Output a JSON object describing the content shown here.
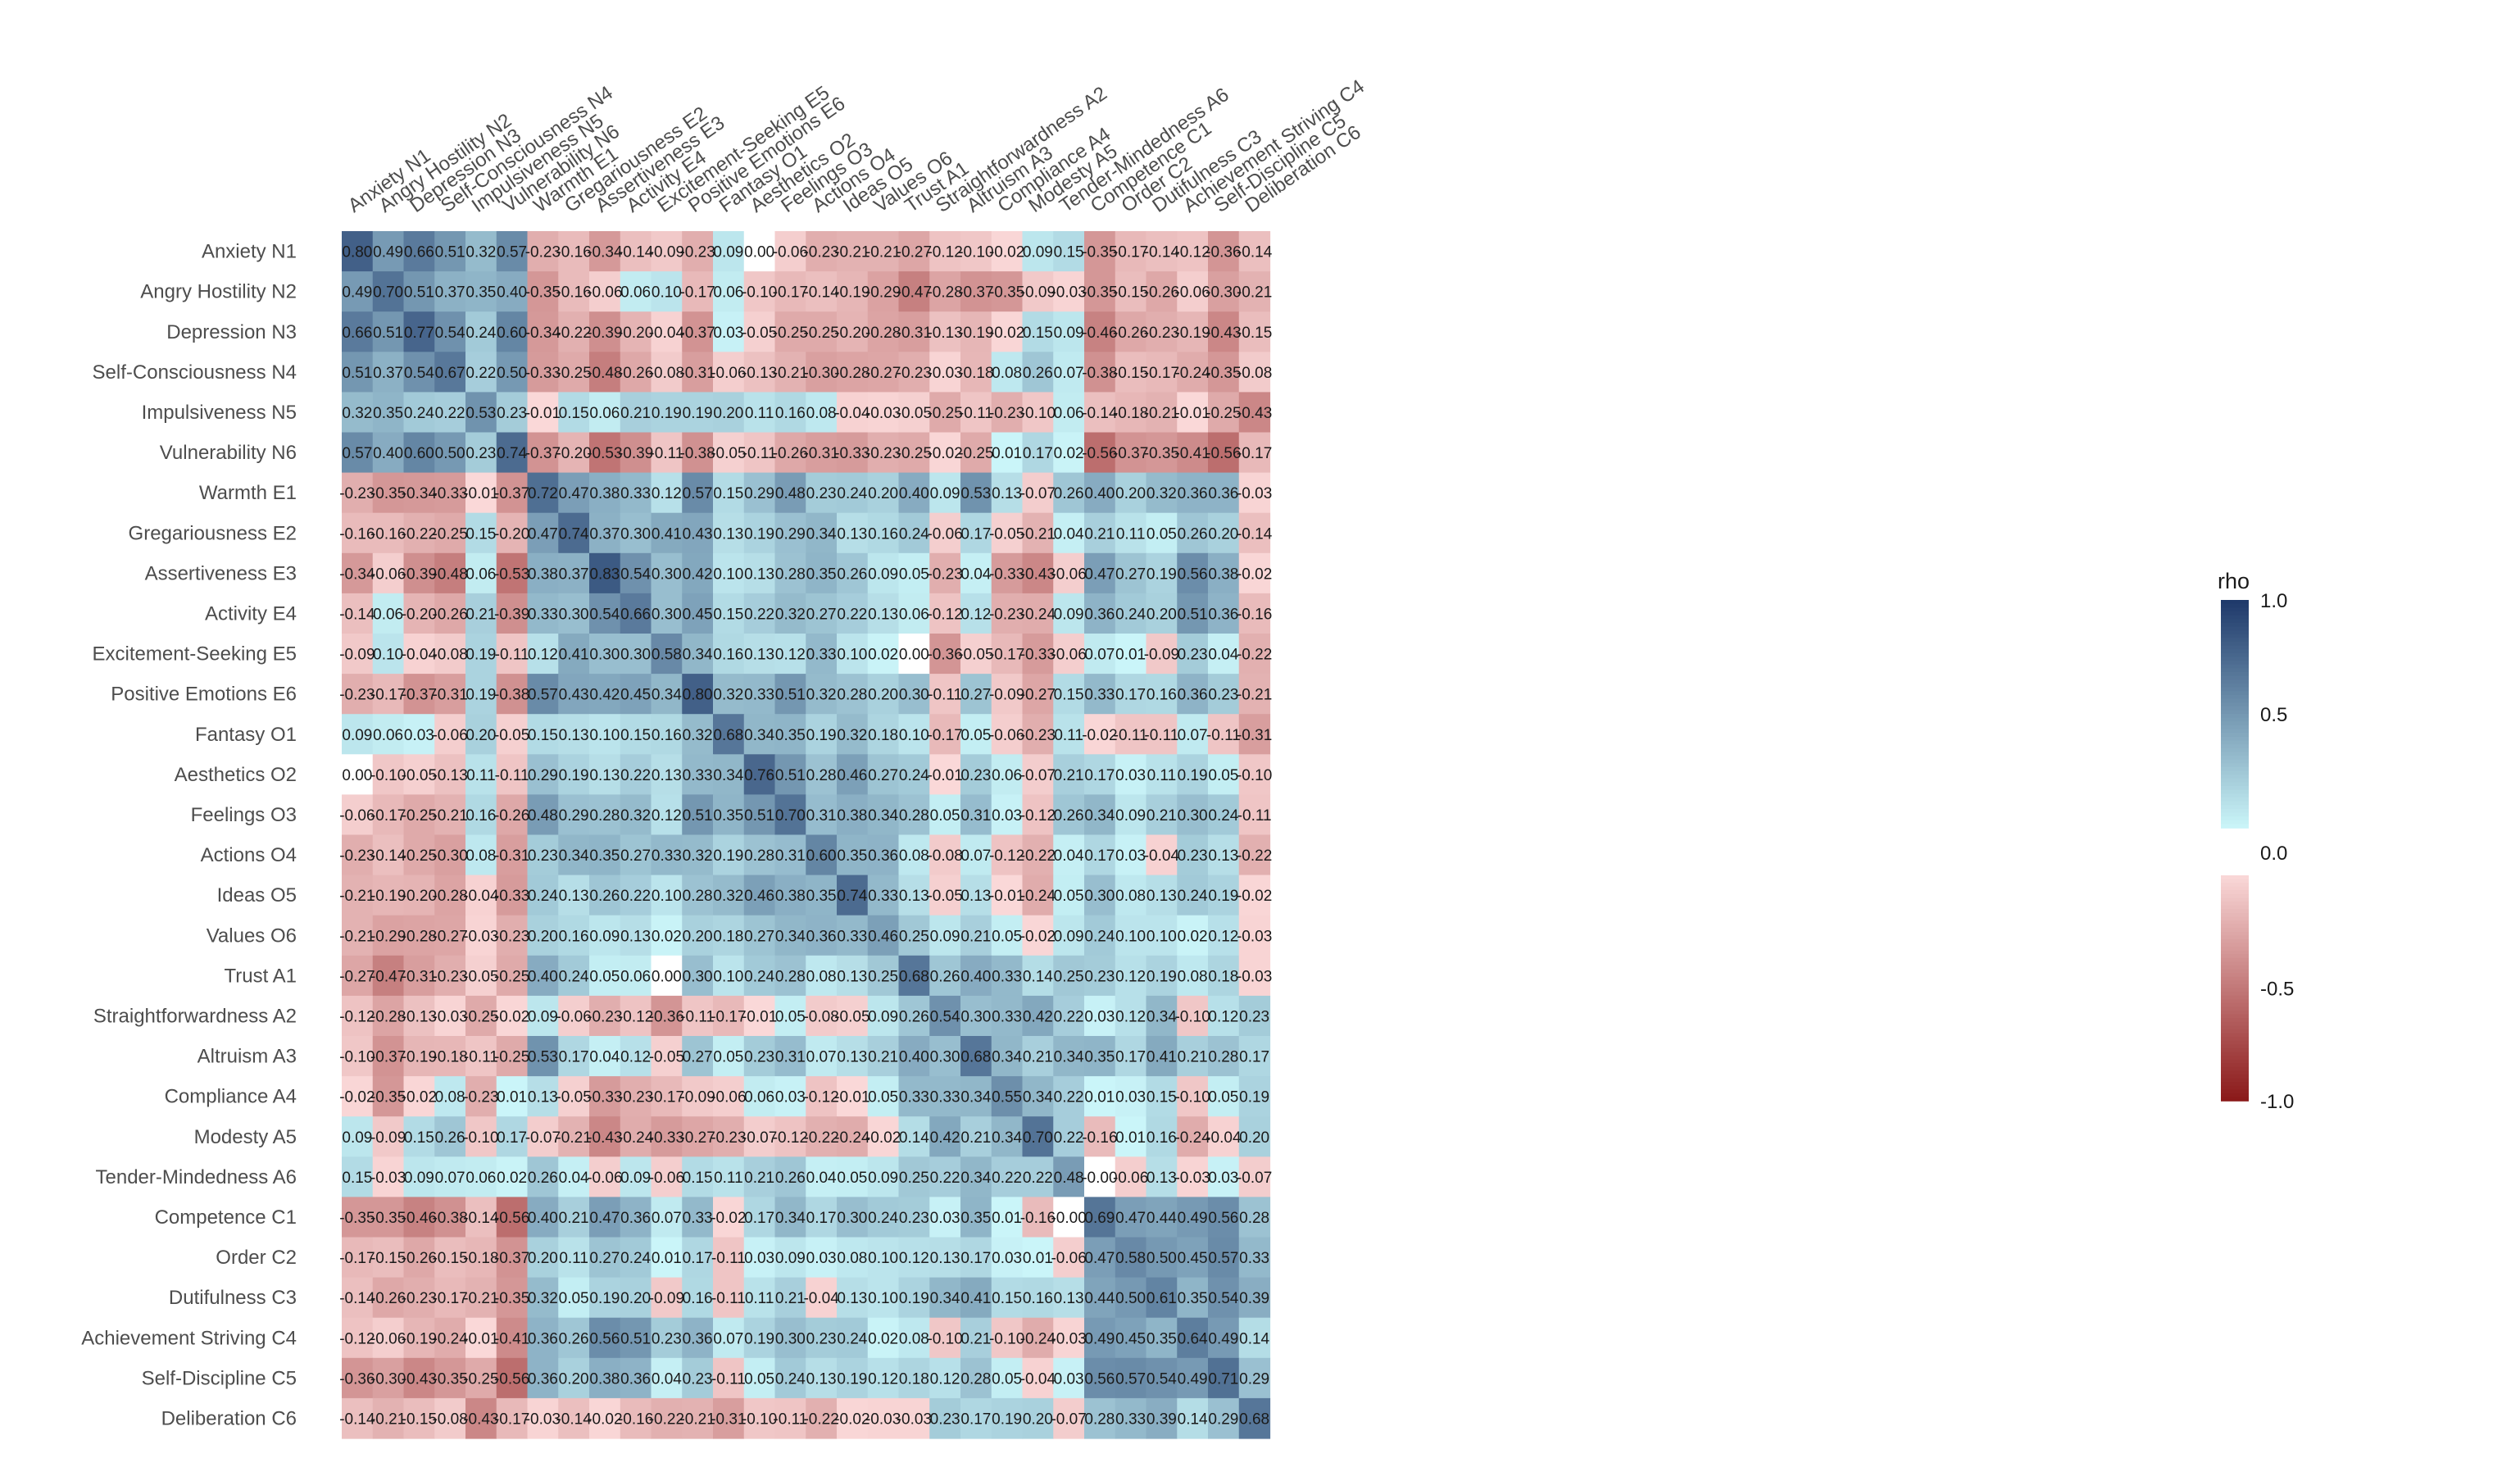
{
  "chart_data": {
    "type": "heatmap",
    "title": "",
    "xlabel": "",
    "ylabel": "",
    "rows": [
      "Anxiety N1",
      "Angry Hostility N2",
      "Depression N3",
      "Self-Consciousness N4",
      "Impulsiveness N5",
      "Vulnerability N6",
      "Warmth E1",
      "Gregariousness E2",
      "Assertiveness E3",
      "Activity E4",
      "Excitement-Seeking E5",
      "Positive Emotions E6",
      "Fantasy O1",
      "Aesthetics O2",
      "Feelings O3",
      "Actions O4",
      "Ideas O5",
      "Values O6",
      "Trust A1",
      "Straightforwardness A2",
      "Altruism A3",
      "Compliance A4",
      "Modesty A5",
      "Tender-Mindedness A6",
      "Competence C1",
      "Order C2",
      "Dutifulness C3",
      "Achievement Striving C4",
      "Self-Discipline C5",
      "Deliberation C6"
    ],
    "columns": [
      "Anxiety N1",
      "Angry Hostility N2",
      "Depression N3",
      "Self-Consciousness N4",
      "Impulsiveness N5",
      "Vulnerability N6",
      "Warmth E1",
      "Gregariousness E2",
      "Assertiveness E3",
      "Activity E4",
      "Excitement-Seeking E5",
      "Positive Emotions E6",
      "Fantasy O1",
      "Aesthetics O2",
      "Feelings O3",
      "Actions O4",
      "Ideas O5",
      "Values O6",
      "Trust A1",
      "Straightforwardness A2",
      "Altruism A3",
      "Compliance A4",
      "Modesty A5",
      "Tender-Mindedness A6",
      "Competence C1",
      "Order C2",
      "Dutifulness C3",
      "Achievement Striving C4",
      "Self-Discipline C5",
      "Deliberation C6"
    ],
    "values": [
      [
        "0.80",
        "0.49",
        "0.66",
        "0.51",
        "0.32",
        "0.57",
        "-0.23",
        "-0.16",
        "-0.34",
        "-0.14",
        "-0.09",
        "-0.23",
        "0.09",
        "0.00",
        "-0.06",
        "-0.23",
        "-0.21",
        "-0.21",
        "-0.27",
        "-0.12",
        "-0.10",
        "-0.02",
        "0.09",
        "0.15",
        "-0.35",
        "-0.17",
        "-0.14",
        "-0.12",
        "-0.36",
        "-0.14"
      ],
      [
        "0.49",
        "0.70",
        "0.51",
        "0.37",
        "0.35",
        "0.40",
        "-0.35",
        "-0.16",
        "-0.06",
        "0.06",
        "0.10",
        "-0.17",
        "0.06",
        "-0.10",
        "-0.17",
        "-0.14",
        "-0.19",
        "-0.29",
        "-0.47",
        "-0.28",
        "-0.37",
        "-0.35",
        "-0.09",
        "-0.03",
        "-0.35",
        "-0.15",
        "-0.26",
        "-0.06",
        "-0.30",
        "-0.21"
      ],
      [
        "0.66",
        "0.51",
        "0.77",
        "0.54",
        "0.24",
        "0.60",
        "-0.34",
        "-0.22",
        "-0.39",
        "-0.20",
        "-0.04",
        "-0.37",
        "0.03",
        "-0.05",
        "-0.25",
        "-0.25",
        "-0.20",
        "-0.28",
        "-0.31",
        "-0.13",
        "-0.19",
        "-0.02",
        "0.15",
        "0.09",
        "-0.46",
        "-0.26",
        "-0.23",
        "-0.19",
        "-0.43",
        "-0.15"
      ],
      [
        "0.51",
        "0.37",
        "0.54",
        "0.67",
        "0.22",
        "0.50",
        "-0.33",
        "-0.25",
        "-0.48",
        "-0.26",
        "-0.08",
        "-0.31",
        "-0.06",
        "-0.13",
        "-0.21",
        "-0.30",
        "-0.28",
        "-0.27",
        "-0.23",
        "-0.03",
        "-0.18",
        "0.08",
        "0.26",
        "0.07",
        "-0.38",
        "-0.15",
        "-0.17",
        "-0.24",
        "-0.35",
        "-0.08"
      ],
      [
        "0.32",
        "0.35",
        "0.24",
        "0.22",
        "0.53",
        "0.23",
        "-0.01",
        "0.15",
        "0.06",
        "0.21",
        "0.19",
        "0.19",
        "0.20",
        "0.11",
        "0.16",
        "0.08",
        "-0.04",
        "-0.03",
        "-0.05",
        "-0.25",
        "-0.11",
        "-0.23",
        "-0.10",
        "0.06",
        "-0.14",
        "-0.18",
        "-0.21",
        "-0.01",
        "-0.25",
        "-0.43"
      ],
      [
        "0.57",
        "0.40",
        "0.60",
        "0.50",
        "0.23",
        "0.74",
        "-0.37",
        "-0.20",
        "-0.53",
        "-0.39",
        "-0.11",
        "-0.38",
        "-0.05",
        "-0.11",
        "-0.26",
        "-0.31",
        "-0.33",
        "-0.23",
        "-0.25",
        "-0.02",
        "-0.25",
        "0.01",
        "0.17",
        "0.02",
        "-0.56",
        "-0.37",
        "-0.35",
        "-0.41",
        "-0.56",
        "-0.17"
      ],
      [
        "-0.23",
        "-0.35",
        "-0.34",
        "-0.33",
        "-0.01",
        "-0.37",
        "0.72",
        "0.47",
        "0.38",
        "0.33",
        "0.12",
        "0.57",
        "0.15",
        "0.29",
        "0.48",
        "0.23",
        "0.24",
        "0.20",
        "0.40",
        "0.09",
        "0.53",
        "0.13",
        "-0.07",
        "0.26",
        "0.40",
        "0.20",
        "0.32",
        "0.36",
        "0.36",
        "-0.03"
      ],
      [
        "-0.16",
        "-0.16",
        "-0.22",
        "-0.25",
        "0.15",
        "-0.20",
        "0.47",
        "0.74",
        "0.37",
        "0.30",
        "0.41",
        "0.43",
        "0.13",
        "0.19",
        "0.29",
        "0.34",
        "0.13",
        "0.16",
        "0.24",
        "-0.06",
        "0.17",
        "-0.05",
        "-0.21",
        "0.04",
        "0.21",
        "0.11",
        "0.05",
        "0.26",
        "0.20",
        "-0.14"
      ],
      [
        "-0.34",
        "-0.06",
        "-0.39",
        "-0.48",
        "0.06",
        "-0.53",
        "0.38",
        "0.37",
        "0.83",
        "0.54",
        "0.30",
        "0.42",
        "0.10",
        "0.13",
        "0.28",
        "0.35",
        "0.26",
        "0.09",
        "0.05",
        "-0.23",
        "0.04",
        "-0.33",
        "-0.43",
        "-0.06",
        "0.47",
        "0.27",
        "0.19",
        "0.56",
        "0.38",
        "-0.02"
      ],
      [
        "-0.14",
        "0.06",
        "-0.20",
        "-0.26",
        "0.21",
        "-0.39",
        "0.33",
        "0.30",
        "0.54",
        "0.66",
        "0.30",
        "0.45",
        "0.15",
        "0.22",
        "0.32",
        "0.27",
        "0.22",
        "0.13",
        "0.06",
        "-0.12",
        "0.12",
        "-0.23",
        "-0.24",
        "0.09",
        "0.36",
        "0.24",
        "0.20",
        "0.51",
        "0.36",
        "-0.16"
      ],
      [
        "-0.09",
        "0.10",
        "-0.04",
        "-0.08",
        "0.19",
        "-0.11",
        "0.12",
        "0.41",
        "0.30",
        "0.30",
        "0.58",
        "0.34",
        "0.16",
        "0.13",
        "0.12",
        "0.33",
        "0.10",
        "0.02",
        "0.00",
        "-0.36",
        "-0.05",
        "-0.17",
        "-0.33",
        "-0.06",
        "0.07",
        "0.01",
        "-0.09",
        "0.23",
        "0.04",
        "-0.22"
      ],
      [
        "-0.23",
        "-0.17",
        "-0.37",
        "-0.31",
        "0.19",
        "-0.38",
        "0.57",
        "0.43",
        "0.42",
        "0.45",
        "0.34",
        "0.80",
        "0.32",
        "0.33",
        "0.51",
        "0.32",
        "0.28",
        "0.20",
        "0.30",
        "-0.11",
        "0.27",
        "-0.09",
        "-0.27",
        "0.15",
        "0.33",
        "0.17",
        "0.16",
        "0.36",
        "0.23",
        "-0.21"
      ],
      [
        "0.09",
        "0.06",
        "0.03",
        "-0.06",
        "0.20",
        "-0.05",
        "0.15",
        "0.13",
        "0.10",
        "0.15",
        "0.16",
        "0.32",
        "0.68",
        "0.34",
        "0.35",
        "0.19",
        "0.32",
        "0.18",
        "0.10",
        "-0.17",
        "0.05",
        "-0.06",
        "-0.23",
        "0.11",
        "-0.02",
        "-0.11",
        "-0.11",
        "0.07",
        "-0.11",
        "-0.31"
      ],
      [
        "0.00",
        "-0.10",
        "-0.05",
        "-0.13",
        "0.11",
        "-0.11",
        "0.29",
        "0.19",
        "0.13",
        "0.22",
        "0.13",
        "0.33",
        "0.34",
        "0.76",
        "0.51",
        "0.28",
        "0.46",
        "0.27",
        "0.24",
        "-0.01",
        "0.23",
        "0.06",
        "-0.07",
        "0.21",
        "0.17",
        "0.03",
        "0.11",
        "0.19",
        "0.05",
        "-0.10"
      ],
      [
        "-0.06",
        "-0.17",
        "-0.25",
        "-0.21",
        "0.16",
        "-0.26",
        "0.48",
        "0.29",
        "0.28",
        "0.32",
        "0.12",
        "0.51",
        "0.35",
        "0.51",
        "0.70",
        "0.31",
        "0.38",
        "0.34",
        "0.28",
        "0.05",
        "0.31",
        "0.03",
        "-0.12",
        "0.26",
        "0.34",
        "0.09",
        "0.21",
        "0.30",
        "0.24",
        "-0.11"
      ],
      [
        "-0.23",
        "-0.14",
        "-0.25",
        "-0.30",
        "0.08",
        "-0.31",
        "0.23",
        "0.34",
        "0.35",
        "0.27",
        "0.33",
        "0.32",
        "0.19",
        "0.28",
        "0.31",
        "0.60",
        "0.35",
        "0.36",
        "0.08",
        "-0.08",
        "0.07",
        "-0.12",
        "-0.22",
        "0.04",
        "0.17",
        "0.03",
        "-0.04",
        "0.23",
        "0.13",
        "-0.22"
      ],
      [
        "-0.21",
        "-0.19",
        "-0.20",
        "-0.28",
        "-0.04",
        "-0.33",
        "0.24",
        "0.13",
        "0.26",
        "0.22",
        "0.10",
        "0.28",
        "0.32",
        "0.46",
        "0.38",
        "0.35",
        "0.74",
        "0.33",
        "0.13",
        "-0.05",
        "0.13",
        "-0.01",
        "-0.24",
        "0.05",
        "0.30",
        "0.08",
        "0.13",
        "0.24",
        "0.19",
        "-0.02"
      ],
      [
        "-0.21",
        "-0.29",
        "-0.28",
        "-0.27",
        "-0.03",
        "-0.23",
        "0.20",
        "0.16",
        "0.09",
        "0.13",
        "0.02",
        "0.20",
        "0.18",
        "0.27",
        "0.34",
        "0.36",
        "0.33",
        "0.46",
        "0.25",
        "0.09",
        "0.21",
        "0.05",
        "-0.02",
        "0.09",
        "0.24",
        "0.10",
        "0.10",
        "0.02",
        "0.12",
        "-0.03"
      ],
      [
        "-0.27",
        "-0.47",
        "-0.31",
        "-0.23",
        "-0.05",
        "-0.25",
        "0.40",
        "0.24",
        "0.05",
        "0.06",
        "0.00",
        "0.30",
        "0.10",
        "0.24",
        "0.28",
        "0.08",
        "0.13",
        "0.25",
        "0.68",
        "0.26",
        "0.40",
        "0.33",
        "0.14",
        "0.25",
        "0.23",
        "0.12",
        "0.19",
        "0.08",
        "0.18",
        "-0.03"
      ],
      [
        "-0.12",
        "-0.28",
        "-0.13",
        "-0.03",
        "-0.25",
        "-0.02",
        "0.09",
        "-0.06",
        "-0.23",
        "-0.12",
        "-0.36",
        "-0.11",
        "-0.17",
        "-0.01",
        "0.05",
        "-0.08",
        "-0.05",
        "0.09",
        "0.26",
        "0.54",
        "0.30",
        "0.33",
        "0.42",
        "0.22",
        "0.03",
        "0.12",
        "0.34",
        "-0.10",
        "0.12",
        "0.23"
      ],
      [
        "-0.10",
        "-0.37",
        "-0.19",
        "-0.18",
        "-0.11",
        "-0.25",
        "0.53",
        "0.17",
        "0.04",
        "0.12",
        "-0.05",
        "0.27",
        "0.05",
        "0.23",
        "0.31",
        "0.07",
        "0.13",
        "0.21",
        "0.40",
        "0.30",
        "0.68",
        "0.34",
        "0.21",
        "0.34",
        "0.35",
        "0.17",
        "0.41",
        "0.21",
        "0.28",
        "0.17"
      ],
      [
        "-0.02",
        "-0.35",
        "-0.02",
        "0.08",
        "-0.23",
        "0.01",
        "0.13",
        "-0.05",
        "-0.33",
        "-0.23",
        "-0.17",
        "-0.09",
        "-0.06",
        "0.06",
        "0.03",
        "-0.12",
        "-0.01",
        "0.05",
        "0.33",
        "0.33",
        "0.34",
        "0.55",
        "0.34",
        "0.22",
        "0.01",
        "0.03",
        "0.15",
        "-0.10",
        "0.05",
        "0.19"
      ],
      [
        "0.09",
        "-0.09",
        "0.15",
        "0.26",
        "-0.10",
        "0.17",
        "-0.07",
        "-0.21",
        "-0.43",
        "-0.24",
        "-0.33",
        "-0.27",
        "-0.23",
        "-0.07",
        "-0.12",
        "-0.22",
        "-0.24",
        "-0.02",
        "0.14",
        "0.42",
        "0.21",
        "0.34",
        "0.70",
        "0.22",
        "-0.16",
        "0.01",
        "0.16",
        "-0.24",
        "-0.04",
        "0.20"
      ],
      [
        "0.15",
        "-0.03",
        "0.09",
        "0.07",
        "0.06",
        "0.02",
        "0.26",
        "0.04",
        "-0.06",
        "0.09",
        "-0.06",
        "0.15",
        "0.11",
        "0.21",
        "0.26",
        "0.04",
        "0.05",
        "0.09",
        "0.25",
        "0.22",
        "0.34",
        "0.22",
        "0.22",
        "0.48",
        "-0.00",
        "-0.06",
        "0.13",
        "-0.03",
        "0.03",
        "-0.07"
      ],
      [
        "-0.35",
        "-0.35",
        "-0.46",
        "-0.38",
        "-0.14",
        "-0.56",
        "0.40",
        "0.21",
        "0.47",
        "0.36",
        "0.07",
        "0.33",
        "-0.02",
        "0.17",
        "0.34",
        "0.17",
        "0.30",
        "0.24",
        "0.23",
        "0.03",
        "0.35",
        "0.01",
        "-0.16",
        "-0.00",
        "0.69",
        "0.47",
        "0.44",
        "0.49",
        "0.56",
        "0.28"
      ],
      [
        "-0.17",
        "-0.15",
        "-0.26",
        "-0.15",
        "-0.18",
        "-0.37",
        "0.20",
        "0.11",
        "0.27",
        "0.24",
        "0.01",
        "0.17",
        "-0.11",
        "0.03",
        "0.09",
        "0.03",
        "0.08",
        "0.10",
        "0.12",
        "0.13",
        "0.17",
        "0.03",
        "0.01",
        "-0.06",
        "0.47",
        "0.58",
        "0.50",
        "0.45",
        "0.57",
        "0.33"
      ],
      [
        "-0.14",
        "-0.26",
        "-0.23",
        "-0.17",
        "-0.21",
        "-0.35",
        "0.32",
        "0.05",
        "0.19",
        "0.20",
        "-0.09",
        "0.16",
        "-0.11",
        "0.11",
        "0.21",
        "-0.04",
        "0.13",
        "0.10",
        "0.19",
        "0.34",
        "0.41",
        "0.15",
        "0.16",
        "0.13",
        "0.44",
        "0.50",
        "0.61",
        "0.35",
        "0.54",
        "0.39"
      ],
      [
        "-0.12",
        "-0.06",
        "-0.19",
        "-0.24",
        "-0.01",
        "-0.41",
        "0.36",
        "0.26",
        "0.56",
        "0.51",
        "0.23",
        "0.36",
        "0.07",
        "0.19",
        "0.30",
        "0.23",
        "0.24",
        "0.02",
        "0.08",
        "-0.10",
        "0.21",
        "-0.10",
        "-0.24",
        "-0.03",
        "0.49",
        "0.45",
        "0.35",
        "0.64",
        "0.49",
        "0.14"
      ],
      [
        "-0.36",
        "-0.30",
        "-0.43",
        "-0.35",
        "-0.25",
        "-0.56",
        "0.36",
        "0.20",
        "0.38",
        "0.36",
        "0.04",
        "0.23",
        "-0.11",
        "0.05",
        "0.24",
        "0.13",
        "0.19",
        "0.12",
        "0.18",
        "0.12",
        "0.28",
        "0.05",
        "-0.04",
        "0.03",
        "0.56",
        "0.57",
        "0.54",
        "0.49",
        "0.71",
        "0.29"
      ],
      [
        "-0.14",
        "-0.21",
        "-0.15",
        "-0.08",
        "-0.43",
        "-0.17",
        "-0.03",
        "-0.14",
        "-0.02",
        "-0.16",
        "-0.22",
        "-0.21",
        "-0.31",
        "-0.10",
        "-0.11",
        "-0.22",
        "-0.02",
        "-0.03",
        "-0.03",
        "0.23",
        "0.17",
        "0.19",
        "0.20",
        "-0.07",
        "0.28",
        "0.33",
        "0.39",
        "0.14",
        "0.29",
        "0.68"
      ]
    ],
    "color_scale": {
      "limits": [
        -1.0,
        1.0
      ],
      "low_color": "#8b1a1a",
      "low_light_color": "#fbdada",
      "zero_color": "#ffffff",
      "high_light_color": "#ccf7fa",
      "high_color": "#1f3a6b"
    },
    "legend": {
      "title": "rho",
      "position": "right",
      "ticks": [
        "1.0",
        "0.5",
        "0.0",
        "-0.5",
        "-1.0"
      ]
    }
  }
}
